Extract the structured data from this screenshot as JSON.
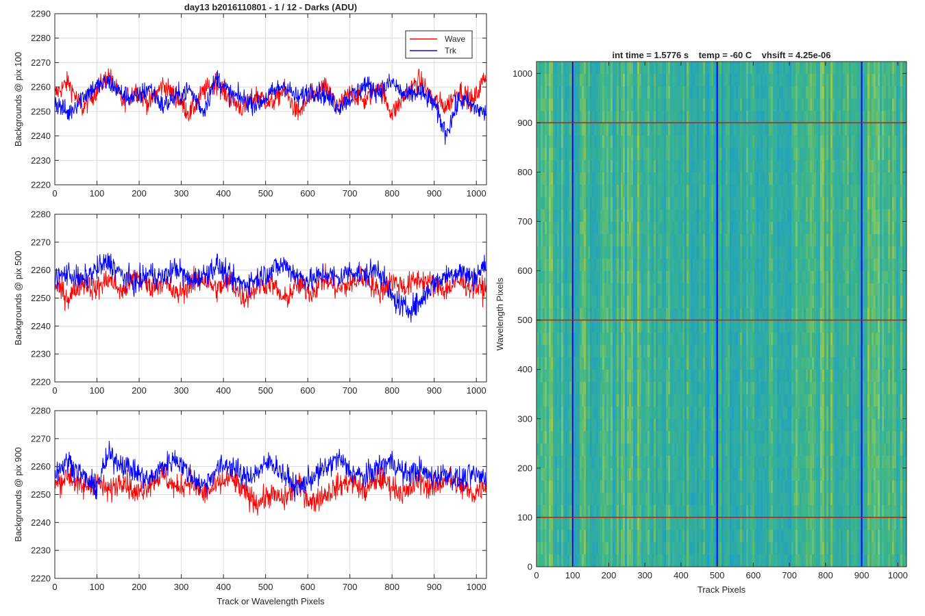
{
  "figure": {
    "background": "#ffffff"
  },
  "chart_data": [
    {
      "type": "line",
      "title": "day13 b2016110801 - 1 / 12 - Darks (ADU)",
      "xlabel": "",
      "ylabel": "Backgrounds @ pix 100",
      "xlim": [
        0,
        1024
      ],
      "ylim": [
        2220,
        2290
      ],
      "xticks": [
        0,
        100,
        200,
        300,
        400,
        500,
        600,
        700,
        800,
        900,
        1000
      ],
      "yticks": [
        2220,
        2230,
        2240,
        2250,
        2260,
        2270,
        2280,
        2290
      ],
      "grid": true,
      "legend": {
        "placement": "top-right",
        "entries": [
          "Wave",
          "Trk"
        ]
      },
      "series": [
        {
          "name": "Wave",
          "color": "#ff0000",
          "x": [
            0,
            32,
            64,
            96,
            128,
            160,
            192,
            224,
            256,
            288,
            320,
            352,
            384,
            416,
            448,
            480,
            512,
            544,
            576,
            608,
            640,
            672,
            704,
            736,
            768,
            800,
            832,
            864,
            896,
            928,
            960,
            992,
            1023
          ],
          "values": [
            2257,
            2262,
            2251,
            2258,
            2265,
            2254,
            2259,
            2253,
            2261,
            2256,
            2249,
            2258,
            2262,
            2255,
            2251,
            2257,
            2253,
            2259,
            2249,
            2256,
            2260,
            2252,
            2258,
            2254,
            2261,
            2249,
            2257,
            2263,
            2255,
            2252,
            2259,
            2254,
            2265
          ]
        },
        {
          "name": "Trk",
          "color": "#0000ff",
          "x": [
            0,
            32,
            64,
            96,
            128,
            160,
            192,
            224,
            256,
            288,
            320,
            352,
            384,
            416,
            448,
            480,
            512,
            544,
            576,
            608,
            640,
            672,
            704,
            736,
            768,
            800,
            832,
            864,
            896,
            928,
            960,
            992,
            1023
          ],
          "values": [
            2254,
            2249,
            2256,
            2260,
            2262,
            2257,
            2255,
            2260,
            2252,
            2256,
            2259,
            2250,
            2264,
            2257,
            2255,
            2253,
            2257,
            2261,
            2255,
            2259,
            2257,
            2252,
            2256,
            2261,
            2258,
            2262,
            2256,
            2258,
            2254,
            2241,
            2255,
            2252,
            2249
          ]
        }
      ]
    },
    {
      "type": "line",
      "title": "",
      "xlabel": "",
      "ylabel": "Backgrounds @ pix 500",
      "xlim": [
        0,
        1024
      ],
      "ylim": [
        2220,
        2280
      ],
      "xticks": [
        0,
        100,
        200,
        300,
        400,
        500,
        600,
        700,
        800,
        900,
        1000
      ],
      "yticks": [
        2220,
        2230,
        2240,
        2250,
        2260,
        2270,
        2280
      ],
      "grid": true,
      "series": [
        {
          "name": "Wave",
          "color": "#ff0000",
          "x": [
            0,
            32,
            64,
            96,
            128,
            160,
            192,
            224,
            256,
            288,
            320,
            352,
            384,
            416,
            448,
            480,
            512,
            544,
            576,
            608,
            640,
            672,
            704,
            736,
            768,
            800,
            832,
            864,
            896,
            928,
            960,
            992,
            1023
          ],
          "values": [
            2255,
            2250,
            2256,
            2253,
            2257,
            2252,
            2258,
            2254,
            2256,
            2251,
            2255,
            2257,
            2253,
            2256,
            2250,
            2254,
            2256,
            2249,
            2255,
            2252,
            2257,
            2253,
            2255,
            2258,
            2252,
            2256,
            2254,
            2257,
            2255,
            2253,
            2256,
            2254,
            2253
          ]
        },
        {
          "name": "Trk",
          "color": "#0000ff",
          "x": [
            0,
            32,
            64,
            96,
            128,
            160,
            192,
            224,
            256,
            288,
            320,
            352,
            384,
            416,
            448,
            480,
            512,
            544,
            576,
            608,
            640,
            672,
            704,
            736,
            768,
            800,
            832,
            864,
            896,
            928,
            960,
            992,
            1023
          ],
          "values": [
            2257,
            2259,
            2256,
            2260,
            2263,
            2258,
            2255,
            2259,
            2257,
            2261,
            2256,
            2258,
            2262,
            2257,
            2255,
            2257,
            2260,
            2262,
            2258,
            2256,
            2259,
            2257,
            2260,
            2258,
            2261,
            2250,
            2246,
            2248,
            2255,
            2258,
            2260,
            2257,
            2262
          ]
        }
      ]
    },
    {
      "type": "line",
      "title": "",
      "xlabel": "Track or Wavelength Pixels",
      "ylabel": "Backgrounds @ pix 900",
      "xlim": [
        0,
        1024
      ],
      "ylim": [
        2220,
        2280
      ],
      "xticks": [
        0,
        100,
        200,
        300,
        400,
        500,
        600,
        700,
        800,
        900,
        1000
      ],
      "yticks": [
        2220,
        2230,
        2240,
        2250,
        2260,
        2270,
        2280
      ],
      "grid": true,
      "series": [
        {
          "name": "Wave",
          "color": "#ff0000",
          "x": [
            0,
            32,
            64,
            96,
            128,
            160,
            192,
            224,
            256,
            288,
            320,
            352,
            384,
            416,
            448,
            480,
            512,
            544,
            576,
            608,
            640,
            672,
            704,
            736,
            768,
            800,
            832,
            864,
            896,
            928,
            960,
            992,
            1023
          ],
          "values": [
            2253,
            2257,
            2252,
            2255,
            2251,
            2256,
            2250,
            2254,
            2257,
            2252,
            2255,
            2250,
            2253,
            2256,
            2251,
            2247,
            2250,
            2248,
            2254,
            2247,
            2250,
            2253,
            2255,
            2251,
            2256,
            2253,
            2250,
            2255,
            2252,
            2256,
            2253,
            2250,
            2254
          ]
        },
        {
          "name": "Trk",
          "color": "#0000ff",
          "x": [
            0,
            32,
            64,
            96,
            128,
            160,
            192,
            224,
            256,
            288,
            320,
            352,
            384,
            416,
            448,
            480,
            512,
            544,
            576,
            608,
            640,
            672,
            704,
            736,
            768,
            800,
            832,
            864,
            896,
            928,
            960,
            992,
            1023
          ],
          "values": [
            2258,
            2262,
            2257,
            2252,
            2264,
            2261,
            2258,
            2255,
            2260,
            2263,
            2257,
            2253,
            2259,
            2261,
            2256,
            2258,
            2262,
            2257,
            2252,
            2256,
            2259,
            2263,
            2258,
            2256,
            2260,
            2262,
            2257,
            2259,
            2256,
            2258,
            2255,
            2257,
            2256
          ]
        }
      ]
    },
    {
      "type": "heatmap",
      "title": "int time = 1.5776 s    temp = -60 C    vhsift = 4.25e-06",
      "xlabel": "Track Pixels",
      "ylabel": "Wavelength Pixels",
      "xlim": [
        0,
        1024
      ],
      "ylim": [
        0,
        1024
      ],
      "xticks": [
        0,
        100,
        200,
        300,
        400,
        500,
        600,
        700,
        800,
        900,
        1000
      ],
      "yticks": [
        0,
        100,
        200,
        300,
        400,
        500,
        600,
        700,
        800,
        900,
        1000
      ],
      "colormap": "parula",
      "colors": {
        "low": "#1e9ec9",
        "mid": "#3cb58a",
        "high": "#bfd33c"
      },
      "vertical_markers": {
        "x": [
          100,
          500,
          900
        ],
        "color": "#0000ff"
      },
      "horizontal_markers": {
        "y": [
          100,
          500,
          900
        ],
        "color": "#ff0000"
      }
    }
  ]
}
